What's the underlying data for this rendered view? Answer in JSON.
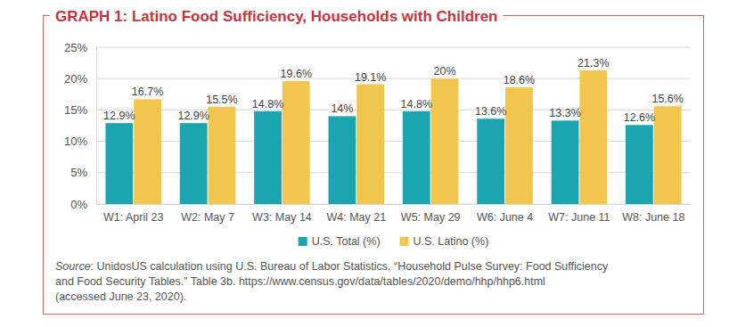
{
  "chart_data": {
    "type": "bar",
    "title": "GRAPH 1: Latino Food Sufficiency, Households with Children",
    "categories": [
      "W1: April 23",
      "W2: May 7",
      "W3: May 14",
      "W4: May 21",
      "W5: May 29",
      "W6: June 4",
      "W7: June 11",
      "W8: June 18"
    ],
    "series": [
      {
        "name": "U.S. Total (%)",
        "color": "#1aa5b1",
        "values": [
          12.9,
          12.9,
          14.8,
          14,
          14.8,
          13.6,
          13.3,
          12.6
        ],
        "value_labels": [
          "12.9%",
          "12.9%",
          "14.8%",
          "14%",
          "14.8%",
          "13.6%",
          "13.3%",
          "12.6%"
        ]
      },
      {
        "name": "U.S. Latino (%)",
        "color": "#f2c54c",
        "values": [
          16.7,
          15.5,
          19.6,
          19.1,
          20,
          18.6,
          21.3,
          15.6
        ],
        "value_labels": [
          "16.7%",
          "15.5%",
          "19.6%",
          "19.1%",
          "20%",
          "18.6%",
          "21.3%",
          "15.6%"
        ]
      }
    ],
    "ylim": [
      0,
      25
    ],
    "yticks": [
      {
        "value": 0,
        "label": "0%"
      },
      {
        "value": 5,
        "label": "5%"
      },
      {
        "value": 10,
        "label": "10%"
      },
      {
        "value": 15,
        "label": "15%"
      },
      {
        "value": 20,
        "label": "20%"
      },
      {
        "value": 25,
        "label": "25%"
      }
    ],
    "grid": true,
    "legend": "bottom",
    "data_labels": true,
    "source": [
      "Source: UnidosUS calculation using U.S. Bureau of Labor Statistics, “Household Pulse Survey: Food Sufficiency",
      "and Food Security Tables.” Table 3b. https://www.census.gov/data/tables/2020/demo/hhp/hhp6.html",
      "(accessed June 23, 2020)."
    ]
  }
}
